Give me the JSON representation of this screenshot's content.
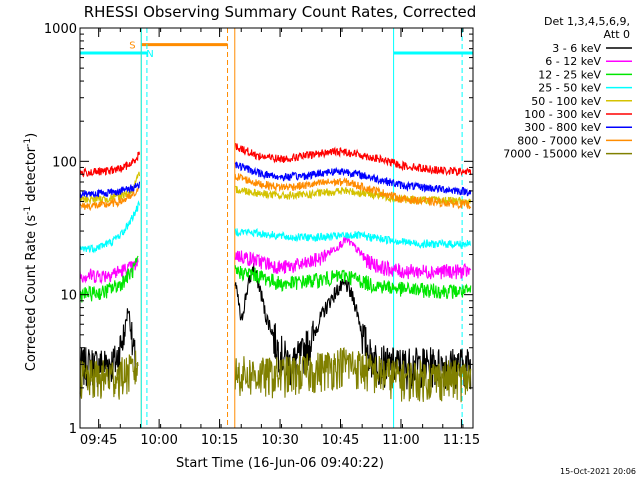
{
  "chart_data": {
    "type": "line",
    "title": "RHESSI Observing Summary Count Rates, Corrected",
    "xlabel": "Start Time (16-Jun-06 09:40:22)",
    "ylabel": "Corrected Count Rate (s⁻¹ detector⁻¹)",
    "ylabel_parts": {
      "pre": "Corrected Count Rate (s",
      "exp1": "-1",
      "mid": " detector",
      "exp2": "-1",
      "post": ")"
    },
    "date_stamp": "15-Oct-2021 20:06",
    "xlim": [
      0,
      97.5
    ],
    "ylim": [
      1,
      1000
    ],
    "y_scale": "log",
    "x_ticks": [
      {
        "t": 4.63,
        "label": "09:45"
      },
      {
        "t": 19.63,
        "label": "10:00"
      },
      {
        "t": 34.63,
        "label": "10:15"
      },
      {
        "t": 49.63,
        "label": "10:30"
      },
      {
        "t": 64.63,
        "label": "10:45"
      },
      {
        "t": 79.63,
        "label": "11:00"
      },
      {
        "t": 94.63,
        "label": "11:15"
      }
    ],
    "y_ticks": [
      {
        "v": 1,
        "label": "1"
      },
      {
        "v": 10,
        "label": "10"
      },
      {
        "v": 100,
        "label": "100"
      },
      {
        "v": 1000,
        "label": "1000"
      }
    ],
    "legend": {
      "position": "right",
      "header1": "Det 1,3,4,5,6,9,",
      "header2": "Att 0",
      "items": [
        {
          "label": "3 - 6 keV",
          "color": "#000000"
        },
        {
          "label": "6 - 12 keV",
          "color": "#ff00ff"
        },
        {
          "label": "12 - 25 keV",
          "color": "#00e600"
        },
        {
          "label": "25 - 50 keV",
          "color": "#00ffff"
        },
        {
          "label": "50 - 100 keV",
          "color": "#d4c200"
        },
        {
          "label": "100 - 300 keV",
          "color": "#ff0000"
        },
        {
          "label": "300 - 800 keV",
          "color": "#0000ff"
        },
        {
          "label": "800 - 7000 keV",
          "color": "#ff8c00"
        },
        {
          "label": "7000 - 15000 keV",
          "color": "#808000"
        }
      ]
    },
    "gap": {
      "start": 15.2,
      "end": 38.4
    },
    "series": [
      {
        "name": "3 - 6 keV",
        "color": "#000000",
        "values_before": [
          [
            0,
            3.0
          ],
          [
            5,
            3.0
          ],
          [
            9,
            3.2
          ],
          [
            11,
            5
          ],
          [
            12,
            8
          ],
          [
            13,
            4
          ],
          [
            14,
            3
          ]
        ],
        "values_after": [
          [
            38.5,
            12
          ],
          [
            40,
            6
          ],
          [
            43,
            16
          ],
          [
            46,
            7
          ],
          [
            49,
            4
          ],
          [
            52,
            3
          ],
          [
            55,
            3.5
          ],
          [
            58,
            5
          ],
          [
            61,
            8
          ],
          [
            64,
            11
          ],
          [
            66,
            12
          ],
          [
            68,
            9
          ],
          [
            70,
            5
          ],
          [
            72,
            3.5
          ],
          [
            76,
            3.0
          ],
          [
            97,
            3.0
          ]
        ]
      },
      {
        "name": "6 - 12 keV",
        "color": "#ff00ff",
        "values_before": [
          [
            0,
            14
          ],
          [
            6,
            14
          ],
          [
            10,
            15
          ],
          [
            13,
            16
          ],
          [
            14.5,
            17
          ]
        ],
        "values_after": [
          [
            38.5,
            20
          ],
          [
            44,
            18
          ],
          [
            50,
            16
          ],
          [
            56,
            17
          ],
          [
            60,
            19
          ],
          [
            64,
            23
          ],
          [
            66,
            26
          ],
          [
            68,
            23
          ],
          [
            71,
            18
          ],
          [
            75,
            16
          ],
          [
            80,
            15
          ],
          [
            97,
            15
          ]
        ]
      },
      {
        "name": "12 - 25 keV",
        "color": "#00e600",
        "values_before": [
          [
            0,
            10
          ],
          [
            6,
            10.5
          ],
          [
            10,
            12
          ],
          [
            13,
            15
          ],
          [
            14.5,
            18
          ]
        ],
        "values_after": [
          [
            38.5,
            15
          ],
          [
            44,
            14
          ],
          [
            50,
            12
          ],
          [
            60,
            13
          ],
          [
            66,
            14
          ],
          [
            72,
            12
          ],
          [
            80,
            11
          ],
          [
            97,
            10.5
          ]
        ]
      },
      {
        "name": "25 - 50 keV",
        "color": "#00ffff",
        "values_before": [
          [
            0,
            22
          ],
          [
            4,
            22.5
          ],
          [
            8,
            25
          ],
          [
            11,
            30
          ],
          [
            13,
            38
          ],
          [
            14.8,
            48
          ]
        ],
        "values_after": [
          [
            38.5,
            30
          ],
          [
            44,
            29
          ],
          [
            52,
            27
          ],
          [
            60,
            27
          ],
          [
            68,
            28
          ],
          [
            76,
            26
          ],
          [
            84,
            24
          ],
          [
            97,
            24
          ]
        ]
      },
      {
        "name": "50 - 100 keV",
        "color": "#d4c200",
        "values_before": [
          [
            0,
            52
          ],
          [
            6,
            52
          ],
          [
            10,
            55
          ],
          [
            13,
            60
          ],
          [
            14.8,
            80
          ]
        ],
        "values_after": [
          [
            38.5,
            62
          ],
          [
            44,
            58
          ],
          [
            50,
            55
          ],
          [
            56,
            56
          ],
          [
            62,
            59
          ],
          [
            66,
            60
          ],
          [
            72,
            57
          ],
          [
            80,
            52
          ],
          [
            97,
            50
          ]
        ]
      },
      {
        "name": "100 - 300 keV",
        "color": "#ff0000",
        "values_before": [
          [
            0,
            82
          ],
          [
            6,
            84
          ],
          [
            10,
            88
          ],
          [
            13,
            97
          ],
          [
            14.8,
            115
          ]
        ],
        "values_after": [
          [
            38.5,
            130
          ],
          [
            44,
            110
          ],
          [
            50,
            104
          ],
          [
            56,
            110
          ],
          [
            62,
            118
          ],
          [
            66,
            118
          ],
          [
            72,
            108
          ],
          [
            80,
            93
          ],
          [
            90,
            85
          ],
          [
            97,
            83
          ]
        ]
      },
      {
        "name": "300 - 800 keV",
        "color": "#0000ff",
        "values_before": [
          [
            0,
            57
          ],
          [
            6,
            58
          ],
          [
            10,
            60
          ],
          [
            13,
            63
          ],
          [
            14.8,
            68
          ]
        ],
        "values_after": [
          [
            38.5,
            95
          ],
          [
            44,
            82
          ],
          [
            50,
            76
          ],
          [
            56,
            78
          ],
          [
            62,
            84
          ],
          [
            66,
            84
          ],
          [
            72,
            76
          ],
          [
            80,
            66
          ],
          [
            97,
            59
          ]
        ]
      },
      {
        "name": "800 - 7000 keV",
        "color": "#ff8c00",
        "values_before": [
          [
            0,
            46
          ],
          [
            6,
            47
          ],
          [
            10,
            50
          ],
          [
            13,
            55
          ],
          [
            14.5,
            60
          ]
        ],
        "values_after": [
          [
            38.5,
            78
          ],
          [
            44,
            68
          ],
          [
            50,
            64
          ],
          [
            56,
            66
          ],
          [
            62,
            70
          ],
          [
            66,
            70
          ],
          [
            72,
            62
          ],
          [
            80,
            52
          ],
          [
            97,
            47
          ]
        ]
      },
      {
        "name": "7000 - 15000 keV",
        "color": "#808000",
        "values_before": [
          [
            0,
            2.4
          ],
          [
            5,
            2.4
          ],
          [
            10,
            2.5
          ],
          [
            13,
            2.7
          ],
          [
            14.5,
            3.0
          ]
        ],
        "values_after": [
          [
            38.5,
            2.6
          ],
          [
            46,
            2.5
          ],
          [
            54,
            2.6
          ],
          [
            60,
            2.8
          ],
          [
            66,
            3.1
          ],
          [
            72,
            2.7
          ],
          [
            80,
            2.4
          ],
          [
            97,
            2.4
          ]
        ]
      }
    ],
    "annotations": {
      "flag_S": {
        "label": "S",
        "start": 15.2,
        "end": 36.6,
        "value": 750,
        "color": "#ff8c00"
      },
      "flag_N": {
        "label": "N",
        "color": "#00ffff"
      },
      "night_1": {
        "start": 0,
        "end": 16.6,
        "value": 650,
        "color": "#00ffff"
      },
      "night_2": {
        "start": 77.8,
        "end": 97.5,
        "value": 650,
        "color": "#00ffff"
      },
      "vlines_solid": [
        {
          "t": 15.2,
          "color": "#ff8c00"
        },
        {
          "t": 38.4,
          "color": "#ff8c00"
        },
        {
          "t": 15.2,
          "color": "#00ffff"
        },
        {
          "t": 77.8,
          "color": "#00ffff"
        }
      ],
      "vlines_dashed": [
        {
          "t": 16.6,
          "color": "#00ffff"
        },
        {
          "t": 36.6,
          "color": "#ff8c00"
        },
        {
          "t": 94.8,
          "color": "#00ffff"
        }
      ]
    }
  }
}
